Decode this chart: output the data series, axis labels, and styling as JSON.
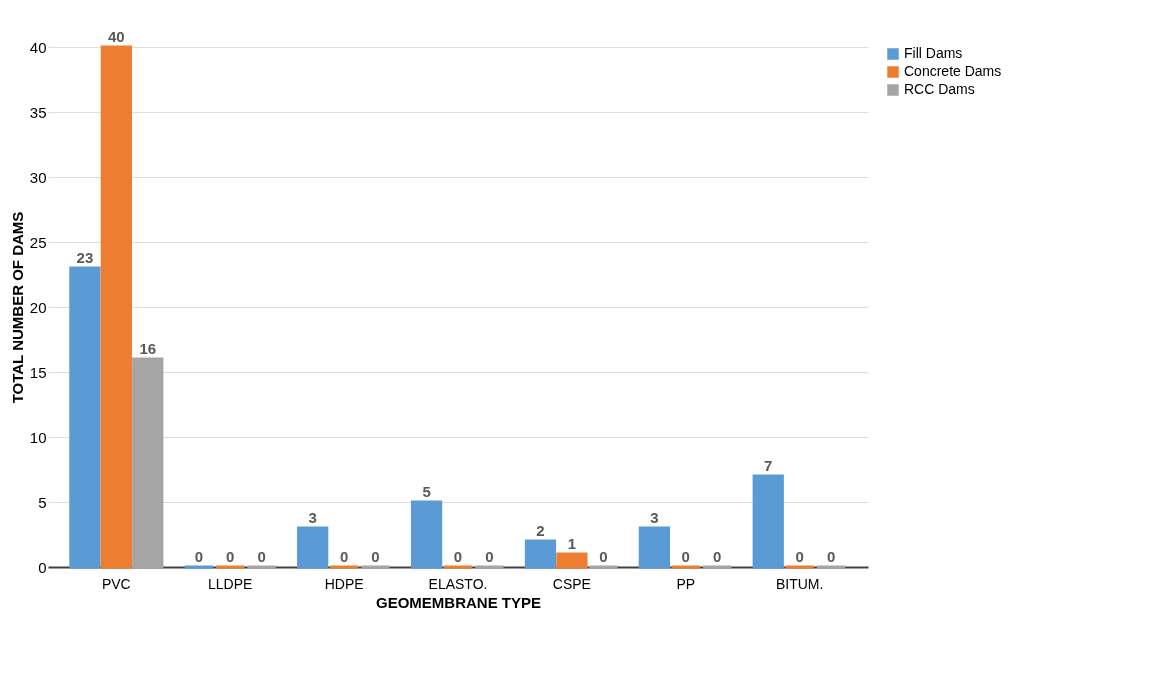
{
  "chart_data": {
    "type": "bar",
    "xlabel": "GEOMEMBRANE TYPE",
    "ylabel": "TOTAL NUMBER OF DAMS",
    "categories": [
      "PVC",
      "LLDPE",
      "HDPE",
      "ELASTO.",
      "CSPE",
      "PP",
      "BITUM."
    ],
    "series": [
      {
        "name": "Fill Dams",
        "color": "#5b9bd5",
        "values": [
          23,
          0,
          3,
          5,
          2,
          3,
          7
        ]
      },
      {
        "name": "Concrete Dams",
        "color": "#ed7d31",
        "values": [
          40,
          0,
          0,
          0,
          1,
          0,
          0
        ]
      },
      {
        "name": "RCC Dams",
        "color": "#a5a5a5",
        "values": [
          16,
          0,
          0,
          0,
          0,
          0,
          0
        ]
      }
    ],
    "ylim": [
      0,
      40
    ],
    "yticks": [
      0,
      5,
      10,
      15,
      20,
      25,
      30,
      35,
      40
    ],
    "grid": "y",
    "legend": "right",
    "data_labels": true
  }
}
